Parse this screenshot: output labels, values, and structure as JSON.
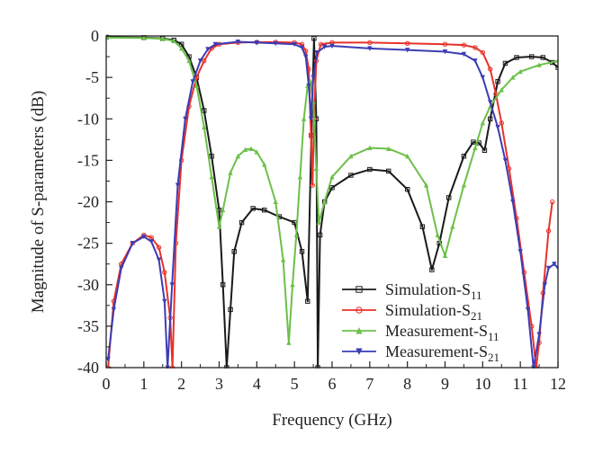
{
  "chart_data": {
    "type": "line",
    "xlabel": "Frequency (GHz)",
    "ylabel": "Magnitude of S-parameters (dB)",
    "xlim": [
      0,
      12
    ],
    "ylim": [
      -40,
      0
    ],
    "xticks": [
      0,
      1,
      2,
      3,
      4,
      5,
      6,
      7,
      8,
      9,
      10,
      11,
      12
    ],
    "yticks": [
      0,
      -5,
      -10,
      -15,
      -20,
      -25,
      -30,
      -35,
      -40
    ],
    "grid": false,
    "legend_position": "bottom-right",
    "series": [
      {
        "name": "Simulation-S11",
        "legend_main": "Simulation-S",
        "legend_sub": "11",
        "color": "#1a1a1a",
        "marker": "square",
        "points": [
          [
            0.0,
            -0.15
          ],
          [
            1.0,
            -0.2
          ],
          [
            1.5,
            -0.3
          ],
          [
            1.8,
            -0.5
          ],
          [
            2.0,
            -1.0
          ],
          [
            2.2,
            -2.5
          ],
          [
            2.4,
            -5.0
          ],
          [
            2.6,
            -9.0
          ],
          [
            2.8,
            -14.5
          ],
          [
            3.0,
            -21.0
          ],
          [
            3.1,
            -30.0
          ],
          [
            3.2,
            -40.0
          ],
          [
            3.3,
            -33.0
          ],
          [
            3.4,
            -26.0
          ],
          [
            3.6,
            -22.5
          ],
          [
            3.9,
            -20.8
          ],
          [
            4.2,
            -21.0
          ],
          [
            4.6,
            -21.8
          ],
          [
            5.0,
            -22.5
          ],
          [
            5.2,
            -26.0
          ],
          [
            5.35,
            -32.0
          ],
          [
            5.45,
            -12.0
          ],
          [
            5.52,
            -0.3
          ],
          [
            5.58,
            -10.0
          ],
          [
            5.62,
            -40.0
          ],
          [
            5.68,
            -24.0
          ],
          [
            5.8,
            -20.0
          ],
          [
            6.0,
            -18.3
          ],
          [
            6.5,
            -16.8
          ],
          [
            7.0,
            -16.1
          ],
          [
            7.5,
            -16.3
          ],
          [
            8.0,
            -18.5
          ],
          [
            8.4,
            -23.0
          ],
          [
            8.65,
            -28.2
          ],
          [
            8.85,
            -25.0
          ],
          [
            9.1,
            -19.5
          ],
          [
            9.5,
            -14.5
          ],
          [
            9.75,
            -12.8
          ],
          [
            9.9,
            -12.9
          ],
          [
            10.05,
            -13.8
          ],
          [
            10.2,
            -10.0
          ],
          [
            10.4,
            -5.5
          ],
          [
            10.6,
            -3.3
          ],
          [
            10.9,
            -2.6
          ],
          [
            11.3,
            -2.5
          ],
          [
            11.6,
            -2.6
          ],
          [
            11.85,
            -3.2
          ],
          [
            12.0,
            -3.8
          ]
        ]
      },
      {
        "name": "Simulation-S21",
        "legend_main": "Simulation-S",
        "legend_sub": "21",
        "color": "#e8322a",
        "marker": "circle",
        "points": [
          [
            0.05,
            -40.0
          ],
          [
            0.2,
            -32.0
          ],
          [
            0.4,
            -27.5
          ],
          [
            0.7,
            -25.0
          ],
          [
            1.0,
            -24.0
          ],
          [
            1.2,
            -24.3
          ],
          [
            1.4,
            -25.5
          ],
          [
            1.55,
            -28.5
          ],
          [
            1.7,
            -34.0
          ],
          [
            1.76,
            -40.0
          ],
          [
            1.85,
            -25.0
          ],
          [
            2.0,
            -15.0
          ],
          [
            2.2,
            -8.5
          ],
          [
            2.4,
            -5.0
          ],
          [
            2.6,
            -3.0
          ],
          [
            2.8,
            -1.5
          ],
          [
            3.0,
            -1.0
          ],
          [
            3.5,
            -0.8
          ],
          [
            4.0,
            -0.75
          ],
          [
            4.5,
            -0.75
          ],
          [
            5.0,
            -0.8
          ],
          [
            5.2,
            -1.0
          ],
          [
            5.3,
            -1.8
          ],
          [
            5.38,
            -4.0
          ],
          [
            5.44,
            -12.0
          ],
          [
            5.48,
            -18.0
          ],
          [
            5.52,
            -10.0
          ],
          [
            5.58,
            -3.0
          ],
          [
            5.7,
            -1.0
          ],
          [
            6.0,
            -0.8
          ],
          [
            7.0,
            -0.8
          ],
          [
            8.0,
            -0.9
          ],
          [
            9.0,
            -1.0
          ],
          [
            9.5,
            -1.1
          ],
          [
            9.8,
            -1.4
          ],
          [
            10.0,
            -2.0
          ],
          [
            10.2,
            -4.0
          ],
          [
            10.35,
            -7.0
          ],
          [
            10.5,
            -10.5
          ],
          [
            10.7,
            -16.0
          ],
          [
            10.9,
            -22.0
          ],
          [
            11.1,
            -28.5
          ],
          [
            11.3,
            -35.0
          ],
          [
            11.42,
            -40.0
          ],
          [
            11.5,
            -37.0
          ],
          [
            11.6,
            -31.0
          ],
          [
            11.75,
            -23.5
          ],
          [
            11.85,
            -20.0
          ]
        ]
      },
      {
        "name": "Measurement-S11",
        "legend_main": "Measurement-S",
        "legend_sub": "11",
        "color": "#6cc04a",
        "marker": "triangle-up",
        "points": [
          [
            0.0,
            -0.2
          ],
          [
            1.0,
            -0.25
          ],
          [
            1.5,
            -0.35
          ],
          [
            1.8,
            -0.6
          ],
          [
            2.0,
            -1.5
          ],
          [
            2.2,
            -3.0
          ],
          [
            2.4,
            -6.0
          ],
          [
            2.6,
            -11.0
          ],
          [
            2.8,
            -17.0
          ],
          [
            3.0,
            -23.0
          ],
          [
            3.1,
            -21.0
          ],
          [
            3.3,
            -16.5
          ],
          [
            3.5,
            -14.5
          ],
          [
            3.7,
            -13.7
          ],
          [
            3.85,
            -13.6
          ],
          [
            4.0,
            -14.0
          ],
          [
            4.2,
            -15.5
          ],
          [
            4.5,
            -20.0
          ],
          [
            4.7,
            -27.0
          ],
          [
            4.85,
            -37.0
          ],
          [
            4.95,
            -30.0
          ],
          [
            5.05,
            -24.0
          ],
          [
            5.15,
            -17.0
          ],
          [
            5.25,
            -10.0
          ],
          [
            5.35,
            -6.0
          ],
          [
            5.42,
            -5.5
          ],
          [
            5.5,
            -8.0
          ],
          [
            5.58,
            -16.0
          ],
          [
            5.65,
            -22.5
          ],
          [
            5.8,
            -20.0
          ],
          [
            6.0,
            -17.0
          ],
          [
            6.5,
            -14.5
          ],
          [
            7.0,
            -13.5
          ],
          [
            7.5,
            -13.6
          ],
          [
            8.0,
            -14.5
          ],
          [
            8.5,
            -18.0
          ],
          [
            8.8,
            -24.0
          ],
          [
            9.0,
            -26.5
          ],
          [
            9.2,
            -23.0
          ],
          [
            9.5,
            -18.0
          ],
          [
            9.8,
            -13.5
          ],
          [
            10.0,
            -10.5
          ],
          [
            10.2,
            -8.5
          ],
          [
            10.5,
            -6.5
          ],
          [
            10.8,
            -5.0
          ],
          [
            11.0,
            -4.3
          ],
          [
            11.5,
            -3.5
          ],
          [
            12.0,
            -3.0
          ]
        ]
      },
      {
        "name": "Measurement-S21",
        "legend_main": "Measurement-S",
        "legend_sub": "21",
        "color": "#3c3cb4",
        "marker": "triangle-down",
        "points": [
          [
            0.05,
            -39.0
          ],
          [
            0.2,
            -33.0
          ],
          [
            0.4,
            -28.0
          ],
          [
            0.7,
            -25.0
          ],
          [
            1.0,
            -24.2
          ],
          [
            1.2,
            -24.8
          ],
          [
            1.4,
            -27.0
          ],
          [
            1.55,
            -32.0
          ],
          [
            1.63,
            -40.0
          ],
          [
            1.75,
            -30.0
          ],
          [
            1.9,
            -18.0
          ],
          [
            2.1,
            -10.0
          ],
          [
            2.3,
            -5.5
          ],
          [
            2.5,
            -3.0
          ],
          [
            2.7,
            -1.6
          ],
          [
            2.9,
            -1.0
          ],
          [
            3.5,
            -0.7
          ],
          [
            4.0,
            -0.8
          ],
          [
            4.5,
            -0.9
          ],
          [
            5.0,
            -1.0
          ],
          [
            5.2,
            -1.4
          ],
          [
            5.3,
            -2.5
          ],
          [
            5.38,
            -6.0
          ],
          [
            5.44,
            -10.0
          ],
          [
            5.5,
            -5.0
          ],
          [
            5.6,
            -2.0
          ],
          [
            5.8,
            -1.3
          ],
          [
            6.0,
            -1.2
          ],
          [
            7.0,
            -1.5
          ],
          [
            8.0,
            -1.7
          ],
          [
            9.0,
            -1.9
          ],
          [
            9.5,
            -2.2
          ],
          [
            9.8,
            -3.0
          ],
          [
            10.0,
            -5.0
          ],
          [
            10.2,
            -8.0
          ],
          [
            10.4,
            -11.0
          ],
          [
            10.6,
            -15.0
          ],
          [
            10.8,
            -20.0
          ],
          [
            11.0,
            -26.0
          ],
          [
            11.2,
            -33.0
          ],
          [
            11.35,
            -40.0
          ],
          [
            11.5,
            -36.0
          ],
          [
            11.65,
            -30.0
          ],
          [
            11.75,
            -28.0
          ],
          [
            11.9,
            -27.5
          ],
          [
            12.0,
            -28.0
          ]
        ]
      }
    ]
  }
}
